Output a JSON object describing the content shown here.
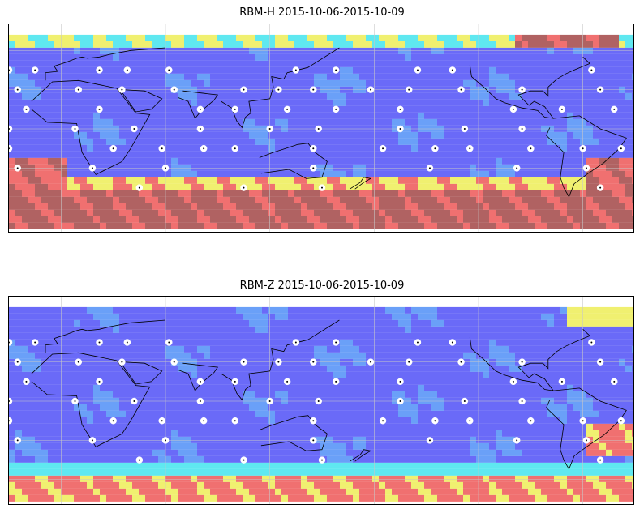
{
  "panels": [
    {
      "title": "RBM-H 2015-10-06-2015-10-09",
      "field": "h",
      "colors": {
        "low": "#6a6af8",
        "mid": "#5fe8f0",
        "high": "#f07070",
        "max": "#b06262"
      }
    },
    {
      "title": "RBM-Z 2015-10-06-2015-10-09",
      "field": "z",
      "colors": {
        "low": "#6a6af8",
        "mid": "#5fe8f0",
        "high": "#f07070",
        "max": "#b06262"
      }
    }
  ],
  "stations": [
    {
      "lon": 22,
      "lat": 45
    },
    {
      "lon": 38,
      "lat": 45
    },
    {
      "lon": 62,
      "lat": 45
    },
    {
      "lon": 135,
      "lat": 45
    },
    {
      "lon": 158,
      "lat": 45
    },
    {
      "lon": 205,
      "lat": 45
    },
    {
      "lon": 225,
      "lat": 45
    },
    {
      "lon": 305,
      "lat": 45
    },
    {
      "lon": 330,
      "lat": 45
    },
    {
      "lon": 345,
      "lat": 45
    },
    {
      "lon": 10,
      "lat": 30
    },
    {
      "lon": 35,
      "lat": 30
    },
    {
      "lon": 65,
      "lat": 30
    },
    {
      "lon": 105,
      "lat": 30
    },
    {
      "lon": 125,
      "lat": 30
    },
    {
      "lon": 145,
      "lat": 30
    },
    {
      "lon": 178,
      "lat": 30
    },
    {
      "lon": 200,
      "lat": 30
    },
    {
      "lon": 230,
      "lat": 30
    },
    {
      "lon": 265,
      "lat": 30
    },
    {
      "lon": 310,
      "lat": 30
    },
    {
      "lon": 335,
      "lat": 30
    },
    {
      "lon": 22,
      "lat": 15
    },
    {
      "lon": 80,
      "lat": 15
    },
    {
      "lon": 100,
      "lat": 15
    },
    {
      "lon": 130,
      "lat": 15
    },
    {
      "lon": 158,
      "lat": 15
    },
    {
      "lon": 195,
      "lat": 15
    },
    {
      "lon": 260,
      "lat": 15
    },
    {
      "lon": 288,
      "lat": 15
    },
    {
      "lon": 318,
      "lat": 15
    },
    {
      "lon": 340,
      "lat": 15
    },
    {
      "lon": 8,
      "lat": 0
    },
    {
      "lon": 42,
      "lat": 0
    },
    {
      "lon": 80,
      "lat": 0
    },
    {
      "lon": 120,
      "lat": 0
    },
    {
      "lon": 148,
      "lat": 0
    },
    {
      "lon": 195,
      "lat": 0
    },
    {
      "lon": 232,
      "lat": 0
    },
    {
      "lon": 265,
      "lat": 0
    },
    {
      "lon": 330,
      "lat": 0
    },
    {
      "lon": 30,
      "lat": -15
    },
    {
      "lon": 58,
      "lat": -15
    },
    {
      "lon": 82,
      "lat": -15
    },
    {
      "lon": 100,
      "lat": -15
    },
    {
      "lon": 145,
      "lat": -15
    },
    {
      "lon": 185,
      "lat": -15
    },
    {
      "lon": 215,
      "lat": -15
    },
    {
      "lon": 235,
      "lat": -15
    },
    {
      "lon": 270,
      "lat": -15
    },
    {
      "lon": 300,
      "lat": -15
    },
    {
      "lon": 322,
      "lat": -15
    },
    {
      "lon": 330,
      "lat": -15
    },
    {
      "lon": 18,
      "lat": -30
    },
    {
      "lon": 60,
      "lat": -30
    },
    {
      "lon": 145,
      "lat": -30
    },
    {
      "lon": 212,
      "lat": -30
    },
    {
      "lon": 262,
      "lat": -30
    },
    {
      "lon": 302,
      "lat": -30
    },
    {
      "lon": 335,
      "lat": -30
    },
    {
      "lon": 45,
      "lat": -45
    },
    {
      "lon": 105,
      "lat": -45
    },
    {
      "lon": 150,
      "lat": -45
    },
    {
      "lon": 310,
      "lat": -45
    }
  ],
  "landmasses": [
    {
      "name": "africa",
      "points": [
        [
          -17,
          21
        ],
        [
          -5,
          36
        ],
        [
          10,
          37
        ],
        [
          32,
          31
        ],
        [
          43,
          12
        ],
        [
          51,
          11
        ],
        [
          40,
          -15
        ],
        [
          35,
          -25
        ],
        [
          20,
          -35
        ],
        [
          12,
          -18
        ],
        [
          9,
          4
        ],
        [
          -8,
          5
        ],
        [
          -17,
          15
        ]
      ]
    },
    {
      "name": "arabia",
      "points": [
        [
          35,
          30
        ],
        [
          48,
          29
        ],
        [
          58,
          23
        ],
        [
          52,
          15
        ],
        [
          43,
          13
        ],
        [
          35,
          28
        ]
      ]
    },
    {
      "name": "india",
      "points": [
        [
          67,
          24
        ],
        [
          73,
          21
        ],
        [
          77,
          8
        ],
        [
          80,
          13
        ],
        [
          88,
          22
        ],
        [
          90,
          26
        ],
        [
          70,
          29
        ]
      ]
    },
    {
      "name": "se-asia",
      "points": [
        [
          92,
          21
        ],
        [
          98,
          16
        ],
        [
          101,
          6
        ],
        [
          104,
          1
        ],
        [
          106,
          9
        ],
        [
          109,
          12
        ],
        [
          108,
          21
        ],
        [
          120,
          23
        ],
        [
          122,
          32
        ],
        [
          121,
          40
        ],
        [
          128,
          38
        ],
        [
          130,
          43
        ],
        [
          142,
          47
        ],
        [
          160,
          62
        ]
      ]
    },
    {
      "name": "australia",
      "points": [
        [
          114,
          -22
        ],
        [
          122,
          -18
        ],
        [
          129,
          -15
        ],
        [
          136,
          -12
        ],
        [
          142,
          -11
        ],
        [
          146,
          -18
        ],
        [
          153,
          -25
        ],
        [
          150,
          -37
        ],
        [
          141,
          -38
        ],
        [
          131,
          -31
        ],
        [
          115,
          -34
        ]
      ]
    },
    {
      "name": "north-america",
      "points": [
        [
          -125,
          49
        ],
        [
          -124,
          40
        ],
        [
          -117,
          32
        ],
        [
          -110,
          23
        ],
        [
          -105,
          20
        ],
        [
          -95,
          16
        ],
        [
          -86,
          14
        ],
        [
          -82,
          9
        ],
        [
          -77,
          8
        ],
        [
          -82,
          17
        ],
        [
          -88,
          21
        ],
        [
          -91,
          18
        ],
        [
          -97,
          26
        ],
        [
          -90,
          29
        ],
        [
          -83,
          29
        ],
        [
          -80,
          25
        ],
        [
          -80,
          32
        ],
        [
          -75,
          38
        ],
        [
          -70,
          42
        ],
        [
          -65,
          45
        ],
        [
          -56,
          50
        ],
        [
          -60,
          55
        ]
      ]
    },
    {
      "name": "south-america",
      "points": [
        [
          -77,
          8
        ],
        [
          -62,
          10
        ],
        [
          -50,
          0
        ],
        [
          -35,
          -7
        ],
        [
          -39,
          -15
        ],
        [
          -48,
          -26
        ],
        [
          -58,
          -35
        ],
        [
          -65,
          -42
        ],
        [
          -68,
          -52
        ],
        [
          -71,
          -45
        ],
        [
          -73,
          -37
        ],
        [
          -71,
          -18
        ],
        [
          -81,
          -5
        ],
        [
          -79,
          1
        ]
      ]
    },
    {
      "name": "europe",
      "points": [
        [
          -9,
          37
        ],
        [
          -9,
          43
        ],
        [
          -2,
          44
        ],
        [
          -4,
          48
        ],
        [
          3,
          51
        ],
        [
          9,
          54
        ],
        [
          12,
          55
        ],
        [
          15,
          54
        ],
        [
          22,
          55
        ],
        [
          28,
          57
        ],
        [
          40,
          60
        ],
        [
          60,
          62
        ]
      ]
    },
    {
      "name": "new-zealand",
      "points": [
        [
          166,
          -46
        ],
        [
          172,
          -41
        ],
        [
          174,
          -37
        ],
        [
          178,
          -38
        ],
        [
          174,
          -41
        ],
        [
          169,
          -46
        ]
      ]
    }
  ]
}
